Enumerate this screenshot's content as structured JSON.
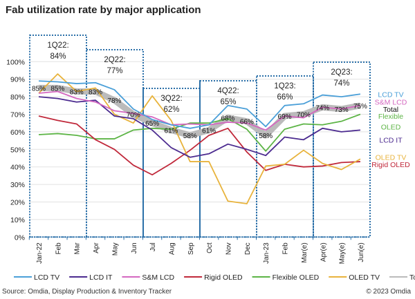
{
  "chart_data": {
    "type": "line",
    "title": "Fab utilization rate by major application",
    "source": "Source: Omdia, Display Production & Inventory Tracker",
    "copyright": "© 2023 Omdia",
    "ylim": [
      0,
      100
    ],
    "yticks": [
      "0%",
      "10%",
      "20%",
      "30%",
      "40%",
      "50%",
      "60%",
      "70%",
      "80%",
      "90%",
      "100%"
    ],
    "grid": true,
    "legend": "bottom",
    "categories": [
      "Jan-22",
      "Feb",
      "Mar",
      "Apr",
      "May",
      "Jun",
      "Jul",
      "Aug",
      "Sep",
      "Oct",
      "Nov",
      "Dec",
      "Jan-23",
      "Feb",
      "Mar(e)",
      "Apr(e)",
      "May(e)",
      "Jun(e)"
    ],
    "series": [
      {
        "name": "LCD TV",
        "color": "#4a9fd8",
        "values": [
          89,
          88.5,
          87.5,
          88,
          84,
          73,
          67,
          64,
          62,
          64,
          75,
          73,
          63,
          75,
          76,
          81,
          80,
          81.5
        ]
      },
      {
        "name": "LCD IT",
        "color": "#4b2a8f",
        "values": [
          80,
          79,
          77,
          78,
          69,
          67.5,
          61,
          51,
          45.5,
          47.5,
          53,
          50,
          46.5,
          57,
          55.5,
          62,
          60,
          61
        ]
      },
      {
        "name": "S&M LCD",
        "color": "#d467c0",
        "values": [
          82,
          83,
          79,
          77,
          72,
          70.5,
          68.5,
          64,
          64.5,
          64,
          65.5,
          65,
          61,
          69,
          68,
          74,
          73,
          75
        ]
      },
      {
        "name": "Rigid OLED",
        "color": "#c0283a",
        "values": [
          69,
          66.5,
          64.5,
          55.5,
          50,
          41,
          35.5,
          42,
          49.5,
          58,
          62,
          48.5,
          38,
          41.5,
          40,
          40.5,
          42.5,
          43
        ]
      },
      {
        "name": "Flexible OLED",
        "color": "#5cb445",
        "values": [
          58.4,
          59,
          58,
          56,
          56,
          61,
          62,
          61.5,
          65,
          65,
          67.5,
          61.5,
          49,
          61.5,
          64.5,
          64,
          66,
          70
        ]
      },
      {
        "name": "OLED TV",
        "color": "#e8b33c",
        "values": [
          82,
          93,
          83,
          85,
          70,
          65,
          80.5,
          66.5,
          43,
          43,
          20.5,
          19,
          40.5,
          41.5,
          49.5,
          42,
          38.5,
          44.5
        ]
      },
      {
        "name": "Total",
        "color": "#bbbbbb",
        "values": [
          85,
          85,
          83,
          83,
          78,
          70,
          65,
          61,
          58,
          61,
          68,
          66,
          58,
          69,
          70,
          74,
          73,
          75
        ]
      }
    ],
    "total_labels": [
      "85%",
      "85%",
      "83%",
      "83%",
      "78%",
      "70%",
      "65%",
      "61%",
      "58%",
      "61%",
      "68%",
      "66%",
      "58%",
      "69%",
      "70%",
      "74%",
      "73%",
      "75%"
    ],
    "quarters": [
      {
        "label": "1Q22:",
        "value": "84%"
      },
      {
        "label": "2Q22:",
        "value": "77%"
      },
      {
        "label": "3Q22:",
        "value": "62%"
      },
      {
        "label": "4Q22:",
        "value": "65%"
      },
      {
        "label": "1Q23:",
        "value": "66%"
      },
      {
        "label": "2Q23:",
        "value": "74%"
      }
    ],
    "right_labels": [
      {
        "text": "LCD TV",
        "color": "#4a9fd8",
        "value": 81.5
      },
      {
        "text": "S&M LCD",
        "color": "#d467c0",
        "value": 77
      },
      {
        "text": "Total",
        "color": "#111111",
        "value": 73
      },
      {
        "text": "Flexible",
        "color": "#5cb445",
        "value": 69
      },
      {
        "text": "OLED",
        "color": "#5cb445",
        "value": 63
      },
      {
        "text": "LCD IT",
        "color": "#4b2a8f",
        "value": 55.5
      },
      {
        "text": "OLED TV",
        "color": "#e8b33c",
        "value": 45.5
      },
      {
        "text": "Rigid OLED",
        "color": "#c0283a",
        "value": 41.5
      }
    ]
  }
}
